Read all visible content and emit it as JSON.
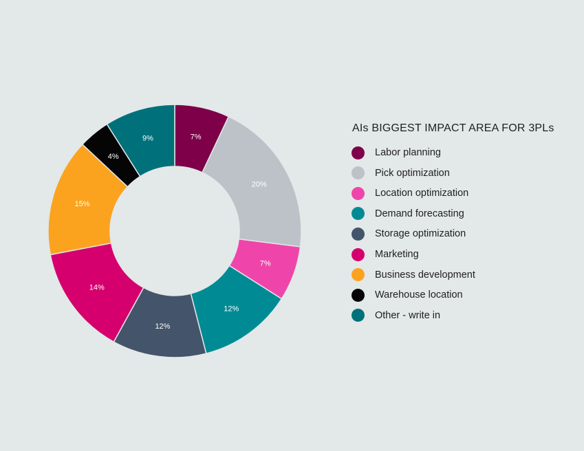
{
  "chart_data": {
    "type": "pie",
    "variant": "donut",
    "title": "AIs BIGGEST IMPACT AREA FOR 3PLs",
    "categories": [
      "Labor planning",
      "Pick optimization",
      "Location optimization",
      "Demand forecasting",
      "Storage optimization",
      "Marketing",
      "Business development",
      "Warehouse location",
      "Other - write in"
    ],
    "values": [
      7,
      20,
      7,
      12,
      12,
      14,
      15,
      4,
      9
    ],
    "labels": [
      "7%",
      "20%",
      "7%",
      "12%",
      "12%",
      "14%",
      "15%",
      "4%",
      "9%"
    ],
    "colors": [
      "#7d0049",
      "#bcc2c7",
      "#ef45ab",
      "#008b94",
      "#44546a",
      "#d5006d",
      "#fba31f",
      "#050505",
      "#00707a"
    ],
    "legend_position": "right"
  }
}
